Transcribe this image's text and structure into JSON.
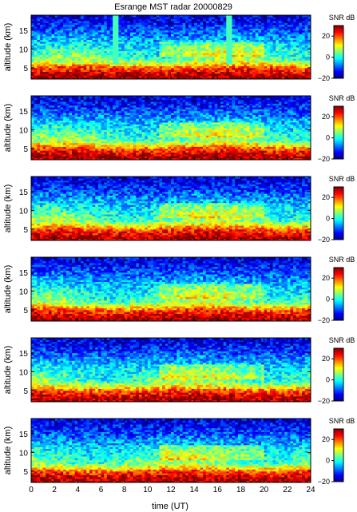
{
  "title": "Esrange MST radar 20000829",
  "chart_data": {
    "type": "heatmap",
    "title": "Esrange MST radar 20000829",
    "xlabel": "time (UT)",
    "ylabel": "altitude (km)",
    "xlim": [
      0,
      24
    ],
    "ylim": [
      2,
      19
    ],
    "x_ticks": [
      "0",
      "2",
      "4",
      "6",
      "8",
      "10",
      "12",
      "14",
      "16",
      "18",
      "20",
      "22",
      "24"
    ],
    "y_ticks": [
      "5",
      "10",
      "15"
    ],
    "colorbar": {
      "label": "SNR dB",
      "range": [
        -20,
        30
      ],
      "ticks": [
        "20",
        "0",
        "−20"
      ],
      "colormap": "jet"
    },
    "panel_count": 6,
    "value_profile_db": [
      {
        "altitude_km": 3,
        "snr_db": 28
      },
      {
        "altitude_km": 5,
        "snr_db": 20
      },
      {
        "altitude_km": 7,
        "snr_db": 5
      },
      {
        "altitude_km": 11,
        "snr_db": -2
      },
      {
        "altitude_km": 15,
        "snr_db": -10
      },
      {
        "altitude_km": 18,
        "snr_db": -15
      }
    ],
    "features": [
      {
        "panel": 1,
        "time_ut": 17,
        "note": "vertical stripe"
      },
      {
        "panel": 1,
        "time_ut": 7.2,
        "note": "vertical stripe"
      }
    ]
  }
}
